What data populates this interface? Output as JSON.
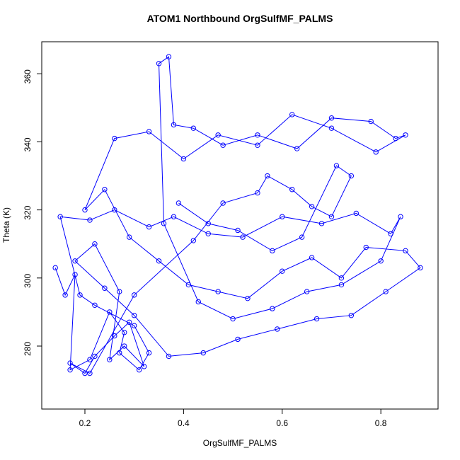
{
  "chart_data": {
    "type": "line",
    "title": "ATOM1 Northbound OrgSulfMF_PALMS",
    "x_label": "OrgSulfMF_PALMS",
    "y_label": "Theta (K)",
    "color": "#0000ff",
    "markers": true,
    "x": [
      0.14,
      0.16,
      0.18,
      0.17,
      0.21,
      0.25,
      0.28,
      0.27,
      0.31,
      0.33,
      0.3,
      0.22,
      0.19,
      0.15,
      0.21,
      0.26,
      0.33,
      0.38,
      0.45,
      0.52,
      0.6,
      0.68,
      0.75,
      0.82,
      0.84,
      0.8,
      0.72,
      0.65,
      0.58,
      0.5,
      0.43,
      0.36,
      0.35,
      0.37,
      0.38,
      0.42,
      0.48,
      0.55,
      0.63,
      0.7,
      0.78,
      0.83,
      0.85,
      0.79,
      0.7,
      0.62,
      0.55,
      0.47,
      0.4,
      0.33,
      0.26,
      0.2,
      0.24,
      0.29,
      0.35,
      0.41,
      0.47,
      0.53,
      0.6,
      0.66,
      0.72,
      0.77,
      0.85,
      0.88,
      0.81,
      0.74,
      0.67,
      0.59,
      0.51,
      0.44,
      0.37,
      0.3,
      0.24,
      0.18,
      0.22,
      0.27,
      0.25,
      0.28,
      0.32,
      0.29,
      0.26,
      0.22,
      0.2,
      0.17,
      0.21,
      0.3,
      0.42,
      0.48,
      0.55,
      0.57,
      0.62,
      0.66,
      0.7,
      0.74,
      0.71,
      0.64,
      0.58,
      0.51,
      0.45,
      0.39
    ],
    "y": [
      303,
      295,
      301,
      273,
      276,
      290,
      284,
      278,
      273,
      278,
      286,
      292,
      295,
      318,
      317,
      320,
      315,
      318,
      313,
      312,
      318,
      316,
      319,
      313,
      318,
      305,
      298,
      296,
      291,
      288,
      293,
      316,
      363,
      365,
      345,
      344,
      339,
      342,
      338,
      347,
      346,
      341,
      342,
      337,
      344,
      348,
      339,
      342,
      335,
      343,
      341,
      320,
      326,
      312,
      305,
      298,
      296,
      294,
      302,
      306,
      300,
      309,
      308,
      303,
      296,
      289,
      288,
      285,
      282,
      278,
      277,
      289,
      297,
      305,
      310,
      296,
      276,
      280,
      274,
      287,
      283,
      277,
      272,
      275,
      272,
      295,
      311,
      322,
      325,
      330,
      326,
      321,
      318,
      330,
      333,
      312,
      308,
      314,
      316,
      322
    ],
    "xlim": [
      0.1125,
      0.916
    ],
    "ylim": [
      261.5,
      369.4
    ],
    "xticks": [
      0.2,
      0.4,
      0.6,
      0.8
    ],
    "yticks": [
      280,
      300,
      320,
      340,
      360
    ]
  }
}
